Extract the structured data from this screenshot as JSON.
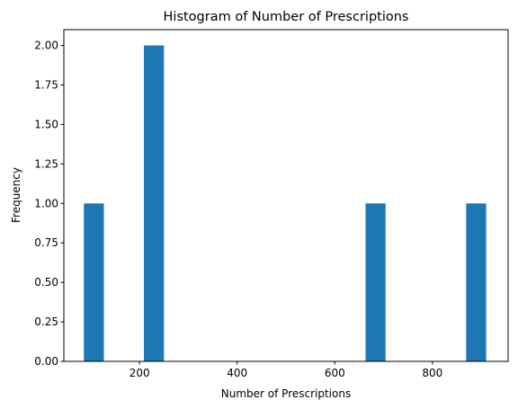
{
  "chart_data": {
    "type": "bar",
    "title": "Histogram of Number of Prescriptions",
    "xlabel": "Number of Prescriptions",
    "ylabel": "Frequency",
    "xlim": [
      45,
      955
    ],
    "ylim": [
      0,
      2.1
    ],
    "xticks": [
      200,
      400,
      600,
      800
    ],
    "yticks": [
      0.0,
      0.25,
      0.5,
      0.75,
      1.0,
      1.25,
      1.5,
      1.75,
      2.0
    ],
    "ytick_labels": [
      "0.00",
      "0.25",
      "0.50",
      "0.75",
      "1.00",
      "1.25",
      "1.50",
      "1.75",
      "2.00"
    ],
    "bars": [
      {
        "x0": 86,
        "x1": 127,
        "count": 1
      },
      {
        "x0": 209,
        "x1": 250,
        "count": 2
      },
      {
        "x0": 663,
        "x1": 704,
        "count": 1
      },
      {
        "x0": 869,
        "x1": 910,
        "count": 1
      }
    ],
    "bar_color": "#1f77b4",
    "grid": false
  }
}
